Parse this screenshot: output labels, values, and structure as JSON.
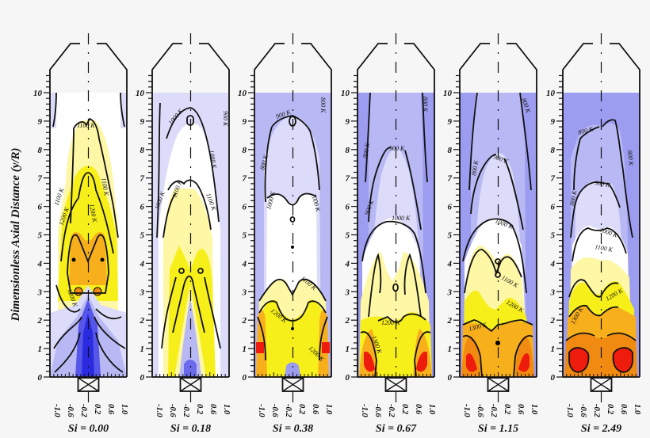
{
  "chart_data": {
    "type": "heatmap",
    "subtype": "contour",
    "title": "",
    "ylabel": "Dimensionless Axial Distance (y/R)",
    "xlabel": "",
    "ylim": [
      0,
      10
    ],
    "xlim": [
      -1.0,
      1.0
    ],
    "y_ticks": [
      "0",
      "1",
      "2",
      "3",
      "4",
      "5",
      "6",
      "7",
      "8",
      "9",
      "10"
    ],
    "x_ticks": [
      "-1.0",
      "-0.6",
      "-0.2",
      "0.2",
      "0.6",
      "1.0"
    ],
    "colorscale": {
      "levels_K": [
        800,
        900,
        1000,
        1100,
        1200,
        1300,
        1400
      ],
      "colors": {
        "lt800": "#9c9cf0",
        "800_900": "#b8b8f4",
        "900_1000": "#dcdcfa",
        "1000_1100": "#ffffff",
        "1100_1200": "#fdf7a6",
        "1200_1300": "#f7ef1a",
        "1300_1400": "#f7b01c",
        "1400_1500": "#f08a10",
        "gt1500": "#ee1c0c",
        "jet_core": "#2a2ae0"
      }
    },
    "panels": [
      {
        "swirl": "Si = 0.00",
        "labels": [
          "1100 K",
          "1100 K",
          "1100 K",
          "1200 K",
          "1200 K",
          "1200 K",
          "1300 K",
          "1200 K",
          "1100 K",
          "900 K",
          "800 K"
        ]
      },
      {
        "swirl": "Si = 0.18",
        "labels": [
          "900 K",
          "900 K",
          "1000 K",
          "1000 K",
          "1000 K",
          "1100 K",
          "1100 K",
          "1200 K",
          "1200 K",
          "1200 K",
          "1200 K",
          "1100 K",
          "1000 K",
          "900 K"
        ]
      },
      {
        "swirl": "Si = 0.38",
        "labels": [
          "900 K",
          "800 K",
          "800 K",
          "900 K",
          "1000 K",
          "1000 K",
          "900 K",
          "1100 K",
          "1100 K",
          "1200 K",
          "1300 K",
          "1400 K",
          "1400 K",
          "1200 K"
        ]
      },
      {
        "swirl": "Si = 0.67",
        "labels": [
          "800 K",
          "800 K",
          "900 K",
          "900 K",
          "1000 K",
          "1000 K",
          "1100 K",
          "1100 K",
          "1100 K",
          "1200 K",
          "1300 K",
          "1400 K",
          "1300 K"
        ]
      },
      {
        "swirl": "Si = 1.15",
        "labels": [
          "800 K",
          "800 K",
          "900 K",
          "900 K",
          "1000 K",
          "1000 K",
          "1100 K",
          "1100 K",
          "1200 K",
          "1200 K",
          "1300 K",
          "1400 K"
        ]
      },
      {
        "swirl": "Si = 2.49",
        "labels": [
          "800 K",
          "800 K",
          "800 K",
          "900 K",
          "900 K",
          "1000 K",
          "1000 K",
          "1100 K",
          "1100 K",
          "1200 K",
          "1300 K",
          "1300 K",
          "1400 K"
        ]
      }
    ]
  },
  "figure": {
    "ylabel": "Dimensionless Axial Distance (y/R)",
    "panels": [
      {
        "title": "Si = 0.00"
      },
      {
        "title": "Si = 0.18"
      },
      {
        "title": "Si = 0.38"
      },
      {
        "title": "Si = 0.67"
      },
      {
        "title": "Si = 1.15"
      },
      {
        "title": "Si = 2.49"
      }
    ]
  }
}
